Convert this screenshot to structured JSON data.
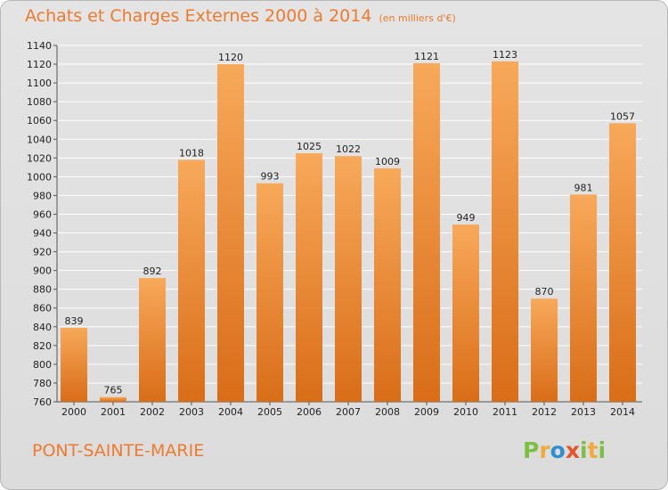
{
  "title": "Achats et Charges Externes 2000 à 2014",
  "unit": "(en milliers d'€)",
  "place": "PONT-SAINTE-MARIE",
  "brand": "Proxiti",
  "colors": {
    "accent": "#ee7a2e",
    "bar_top": "#f7a95a",
    "bar_bottom": "#d96d18"
  },
  "chart_data": {
    "type": "bar",
    "categories": [
      "2000",
      "2001",
      "2002",
      "2003",
      "2004",
      "2005",
      "2006",
      "2007",
      "2008",
      "2009",
      "2010",
      "2011",
      "2012",
      "2013",
      "2014"
    ],
    "values": [
      839,
      765,
      892,
      1018,
      1120,
      993,
      1025,
      1022,
      1009,
      1121,
      949,
      1123,
      870,
      981,
      1057
    ],
    "ylim": [
      760,
      1140
    ],
    "yticks": [
      760,
      780,
      800,
      820,
      840,
      860,
      880,
      900,
      920,
      940,
      960,
      980,
      1000,
      1020,
      1040,
      1060,
      1080,
      1100,
      1120,
      1140
    ],
    "grid": true,
    "legend": "none"
  }
}
